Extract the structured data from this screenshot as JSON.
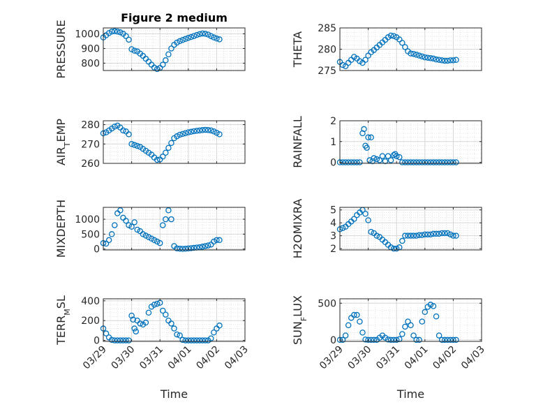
{
  "colors": {
    "marker": "#0072BD",
    "axis": "#262626"
  },
  "chart_data": [
    {
      "type": "scatter",
      "id": "pressure",
      "title": "Figure 2 medium",
      "ylabel": "PRESSURE",
      "ylabel_sub": "",
      "ylim": [
        750,
        1040
      ],
      "yticks": [
        800,
        900,
        1000
      ],
      "xlim": [
        0,
        5
      ],
      "xticks": [
        0,
        1,
        2,
        3,
        4,
        5
      ],
      "xticklabels": [
        "03/29",
        "03/30",
        "03/31",
        "04/01",
        "04/02",
        "04/03"
      ],
      "xlabel": "",
      "x": [
        0.0,
        0.1,
        0.2,
        0.3,
        0.4,
        0.5,
        0.6,
        0.7,
        0.8,
        0.9,
        1.0,
        1.1,
        1.2,
        1.3,
        1.4,
        1.5,
        1.6,
        1.7,
        1.8,
        1.9,
        2.0,
        2.1,
        2.2,
        2.3,
        2.4,
        2.5,
        2.6,
        2.7,
        2.8,
        2.9,
        3.0,
        3.1,
        3.2,
        3.3,
        3.4,
        3.5,
        3.6,
        3.7,
        3.8,
        3.9,
        4.0,
        4.1
      ],
      "y": [
        975,
        990,
        1005,
        1015,
        1018,
        1015,
        1010,
        1000,
        985,
        960,
        895,
        885,
        880,
        865,
        850,
        830,
        810,
        790,
        770,
        760,
        768,
        790,
        820,
        860,
        900,
        925,
        940,
        950,
        958,
        965,
        972,
        978,
        985,
        992,
        998,
        1002,
        1000,
        995,
        985,
        975,
        968,
        962
      ]
    },
    {
      "type": "scatter",
      "id": "theta",
      "title": "",
      "ylabel": "THETA",
      "ylabel_sub": "",
      "ylim": [
        275,
        285
      ],
      "yticks": [
        275,
        280,
        285
      ],
      "xlim": [
        0,
        5
      ],
      "xticks": [
        0,
        1,
        2,
        3,
        4,
        5
      ],
      "xticklabels": [
        "03/29",
        "03/30",
        "03/31",
        "04/01",
        "04/02",
        "04/03"
      ],
      "xlabel": "",
      "x": [
        0.0,
        0.1,
        0.2,
        0.3,
        0.4,
        0.5,
        0.6,
        0.7,
        0.8,
        0.9,
        1.0,
        1.1,
        1.2,
        1.3,
        1.4,
        1.5,
        1.6,
        1.7,
        1.8,
        1.9,
        2.0,
        2.1,
        2.2,
        2.3,
        2.4,
        2.5,
        2.6,
        2.7,
        2.8,
        2.9,
        3.0,
        3.1,
        3.2,
        3.3,
        3.4,
        3.5,
        3.6,
        3.7,
        3.8,
        3.9,
        4.0,
        4.1
      ],
      "y": [
        277.0,
        276.3,
        276.0,
        276.8,
        277.5,
        278.2,
        277.8,
        277.2,
        276.8,
        277.5,
        278.5,
        279.3,
        279.8,
        280.4,
        281.0,
        281.6,
        282.2,
        282.8,
        283.2,
        283.1,
        282.8,
        282.3,
        281.5,
        280.5,
        279.5,
        279.0,
        278.9,
        278.7,
        278.5,
        278.3,
        278.1,
        278.0,
        277.9,
        277.8,
        277.6,
        277.5,
        277.4,
        277.3,
        277.3,
        277.4,
        277.4,
        277.5
      ]
    },
    {
      "type": "scatter",
      "id": "air_temp",
      "title": "",
      "ylabel": "AIR",
      "ylabel_sub": "T",
      "ylabel_suffix": "EMP",
      "ylim": [
        260,
        282
      ],
      "yticks": [
        260,
        270,
        280
      ],
      "xlim": [
        0,
        5
      ],
      "xticks": [
        0,
        1,
        2,
        3,
        4,
        5
      ],
      "xticklabels": [
        "03/29",
        "03/30",
        "03/31",
        "04/01",
        "04/02",
        "04/03"
      ],
      "xlabel": "",
      "x": [
        0.0,
        0.1,
        0.2,
        0.3,
        0.4,
        0.5,
        0.6,
        0.7,
        0.8,
        0.9,
        1.0,
        1.1,
        1.2,
        1.3,
        1.4,
        1.5,
        1.6,
        1.7,
        1.8,
        1.9,
        2.0,
        2.1,
        2.2,
        2.3,
        2.4,
        2.5,
        2.6,
        2.7,
        2.8,
        2.9,
        3.0,
        3.1,
        3.2,
        3.3,
        3.4,
        3.5,
        3.6,
        3.7,
        3.8,
        3.9,
        4.0,
        4.1
      ],
      "y": [
        275.5,
        276.0,
        277.0,
        278.0,
        279.0,
        279.5,
        278.5,
        277.0,
        276.5,
        275.0,
        270.0,
        269.5,
        269.0,
        268.5,
        267.5,
        266.5,
        265.5,
        264.5,
        263.0,
        261.8,
        262.0,
        263.5,
        265.5,
        268.0,
        270.5,
        273.0,
        274.0,
        274.8,
        275.2,
        275.6,
        276.0,
        276.3,
        276.6,
        276.8,
        277.0,
        277.2,
        277.3,
        277.2,
        277.0,
        276.5,
        275.8,
        275.0
      ]
    },
    {
      "type": "scatter",
      "id": "rainfall",
      "title": "",
      "ylabel": "RAINFALL",
      "ylabel_sub": "",
      "ylim": [
        -0.05,
        2.0
      ],
      "yticks": [
        0,
        1,
        2
      ],
      "xlim": [
        0,
        5
      ],
      "xticks": [
        0,
        1,
        2,
        3,
        4,
        5
      ],
      "xticklabels": [
        "03/29",
        "03/30",
        "03/31",
        "04/01",
        "04/02",
        "04/03"
      ],
      "xlabel": "",
      "x": [
        0.0,
        0.1,
        0.2,
        0.3,
        0.4,
        0.5,
        0.6,
        0.7,
        0.8,
        0.85,
        0.9,
        0.95,
        1.0,
        1.05,
        1.1,
        1.15,
        1.2,
        1.3,
        1.4,
        1.5,
        1.6,
        1.7,
        1.8,
        1.9,
        1.95,
        2.0,
        2.1,
        2.2,
        2.3,
        2.4,
        2.5,
        2.6,
        2.7,
        2.8,
        2.9,
        3.0,
        3.1,
        3.2,
        3.3,
        3.4,
        3.5,
        3.6,
        3.7,
        3.8,
        3.9,
        4.0,
        4.1
      ],
      "y": [
        0,
        0,
        0,
        0,
        0,
        0,
        0,
        0,
        1.4,
        1.6,
        0.8,
        0.7,
        1.2,
        0.1,
        1.2,
        0.05,
        0.2,
        0.15,
        0.1,
        0.3,
        0.05,
        0.3,
        0.1,
        0.35,
        0.4,
        0.3,
        0.25,
        0,
        0,
        0,
        0,
        0,
        0,
        0,
        0,
        0,
        0,
        0,
        0,
        0,
        0,
        0,
        0,
        0,
        0,
        0,
        0
      ]
    },
    {
      "type": "scatter",
      "id": "mixdepth",
      "title": "",
      "ylabel": "MIXDEPTH",
      "ylabel_sub": "",
      "ylim": [
        -30,
        1400
      ],
      "yticks": [
        0,
        500,
        1000
      ],
      "xlim": [
        0,
        5
      ],
      "xticks": [
        0,
        1,
        2,
        3,
        4,
        5
      ],
      "xticklabels": [
        "03/29",
        "03/30",
        "03/31",
        "04/01",
        "04/02",
        "04/03"
      ],
      "xlabel": "",
      "x": [
        0.0,
        0.1,
        0.2,
        0.3,
        0.4,
        0.5,
        0.6,
        0.7,
        0.8,
        0.9,
        1.0,
        1.1,
        1.2,
        1.3,
        1.4,
        1.5,
        1.6,
        1.7,
        1.8,
        1.9,
        2.0,
        2.1,
        2.2,
        2.3,
        2.4,
        2.5,
        2.6,
        2.7,
        2.8,
        2.9,
        3.0,
        3.1,
        3.2,
        3.3,
        3.4,
        3.5,
        3.6,
        3.7,
        3.8,
        3.9,
        4.0,
        4.1
      ],
      "y": [
        200,
        180,
        300,
        500,
        800,
        1200,
        1300,
        1050,
        950,
        800,
        750,
        900,
        650,
        600,
        500,
        450,
        400,
        350,
        300,
        250,
        200,
        800,
        1000,
        1300,
        1000,
        100,
        20,
        10,
        5,
        10,
        20,
        30,
        40,
        50,
        60,
        80,
        100,
        120,
        150,
        250,
        300,
        300
      ]
    },
    {
      "type": "scatter",
      "id": "h2omixra",
      "title": "",
      "ylabel": "H2OMIXRA",
      "ylabel_sub": "",
      "ylim": [
        1.9,
        5.2
      ],
      "yticks": [
        2,
        3,
        4,
        5
      ],
      "xlim": [
        0,
        5
      ],
      "xticks": [
        0,
        1,
        2,
        3,
        4,
        5
      ],
      "xticklabels": [
        "03/29",
        "03/30",
        "03/31",
        "04/01",
        "04/02",
        "04/03"
      ],
      "xlabel": "",
      "x": [
        0.0,
        0.1,
        0.2,
        0.3,
        0.4,
        0.5,
        0.6,
        0.7,
        0.8,
        0.9,
        1.0,
        1.1,
        1.2,
        1.3,
        1.4,
        1.5,
        1.6,
        1.7,
        1.8,
        1.9,
        2.0,
        2.1,
        2.2,
        2.3,
        2.4,
        2.5,
        2.6,
        2.7,
        2.8,
        2.9,
        3.0,
        3.1,
        3.2,
        3.3,
        3.4,
        3.5,
        3.6,
        3.7,
        3.8,
        3.9,
        4.0,
        4.1
      ],
      "y": [
        3.5,
        3.6,
        3.7,
        3.9,
        4.1,
        4.3,
        4.6,
        4.8,
        5.0,
        4.7,
        4.2,
        3.3,
        3.2,
        3.0,
        2.9,
        2.7,
        2.5,
        2.3,
        2.1,
        2.0,
        2.0,
        2.1,
        2.6,
        3.0,
        3.0,
        3.0,
        3.0,
        3.0,
        3.05,
        3.05,
        3.1,
        3.1,
        3.1,
        3.15,
        3.15,
        3.15,
        3.2,
        3.2,
        3.2,
        3.1,
        3.0,
        3.0
      ]
    },
    {
      "type": "scatter",
      "id": "terr_msl",
      "title": "",
      "ylabel": "TERR",
      "ylabel_sub": "M",
      "ylabel_suffix": "SL",
      "ylim": [
        -10,
        420
      ],
      "yticks": [
        0,
        200,
        400
      ],
      "xlim": [
        0,
        5
      ],
      "xticks": [
        0,
        1,
        2,
        3,
        4,
        5
      ],
      "xticklabels": [
        "03/29",
        "03/30",
        "03/31",
        "04/01",
        "04/02",
        "04/03"
      ],
      "xlabel": "Time",
      "x": [
        0.0,
        0.1,
        0.2,
        0.3,
        0.4,
        0.5,
        0.6,
        0.7,
        0.8,
        0.9,
        1.0,
        1.05,
        1.1,
        1.15,
        1.2,
        1.3,
        1.4,
        1.5,
        1.6,
        1.7,
        1.8,
        1.9,
        2.0,
        2.1,
        2.2,
        2.3,
        2.4,
        2.5,
        2.6,
        2.7,
        2.8,
        2.9,
        3.0,
        3.1,
        3.2,
        3.3,
        3.4,
        3.5,
        3.6,
        3.7,
        3.8,
        3.9,
        4.0,
        4.1
      ],
      "y": [
        120,
        70,
        30,
        5,
        0,
        0,
        0,
        0,
        0,
        0,
        250,
        210,
        120,
        90,
        200,
        170,
        160,
        180,
        280,
        340,
        360,
        370,
        380,
        300,
        260,
        200,
        170,
        120,
        60,
        50,
        5,
        0,
        0,
        0,
        0,
        0,
        0,
        0,
        0,
        0,
        20,
        80,
        120,
        150
      ]
    },
    {
      "type": "scatter",
      "id": "sun_flux",
      "title": "",
      "ylabel": "SUN",
      "ylabel_sub": "F",
      "ylabel_suffix": "LUX",
      "ylim": [
        -20,
        560
      ],
      "yticks": [
        0,
        500
      ],
      "xlim": [
        0,
        5
      ],
      "xticks": [
        0,
        1,
        2,
        3,
        4,
        5
      ],
      "xticklabels": [
        "03/29",
        "03/30",
        "03/31",
        "04/01",
        "04/02",
        "04/03"
      ],
      "xlabel": "Time",
      "x": [
        0.0,
        0.1,
        0.2,
        0.3,
        0.4,
        0.5,
        0.6,
        0.7,
        0.8,
        0.9,
        1.0,
        1.1,
        1.2,
        1.3,
        1.4,
        1.5,
        1.6,
        1.7,
        1.8,
        1.9,
        2.0,
        2.1,
        2.2,
        2.3,
        2.4,
        2.5,
        2.6,
        2.7,
        2.8,
        2.9,
        3.0,
        3.1,
        3.2,
        3.3,
        3.4,
        3.5,
        3.6,
        3.7,
        3.8,
        3.9,
        4.0,
        4.1
      ],
      "y": [
        0,
        0,
        60,
        200,
        300,
        340,
        340,
        250,
        100,
        5,
        0,
        0,
        0,
        0,
        30,
        60,
        30,
        5,
        0,
        0,
        0,
        10,
        80,
        180,
        250,
        200,
        60,
        0,
        0,
        250,
        380,
        450,
        480,
        460,
        320,
        60,
        0,
        0,
        0,
        0,
        0,
        0
      ]
    }
  ]
}
